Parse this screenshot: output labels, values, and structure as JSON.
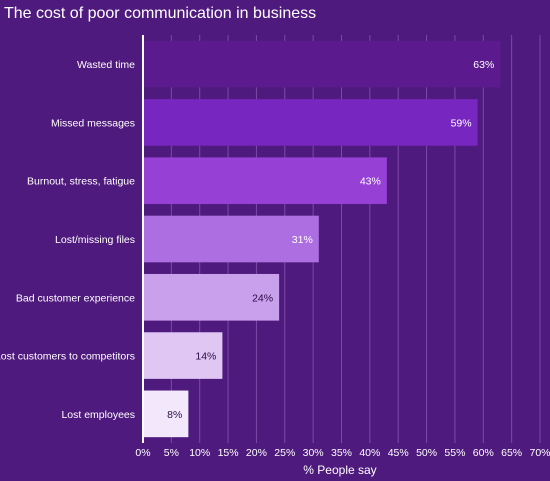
{
  "chart_data": {
    "type": "bar",
    "orientation": "horizontal",
    "title": "The cost of poor communication in business",
    "xlabel": "% People say",
    "ylabel": "",
    "xlim": [
      0,
      70
    ],
    "x_ticks": [
      "0%",
      "5%",
      "10%",
      "15%",
      "20%",
      "25%",
      "30%",
      "35%",
      "40%",
      "45%",
      "50%",
      "55%",
      "60%",
      "65%",
      "70%"
    ],
    "grid": true,
    "categories": [
      "Wasted time",
      "Missed messages",
      "Burnout, stress, fatigue",
      "Lost/missing files",
      "Bad customer experience",
      "Lost customers to competitors",
      "Lost employees"
    ],
    "values": [
      63,
      59,
      43,
      31,
      24,
      14,
      8
    ],
    "value_labels": [
      "63%",
      "59%",
      "43%",
      "31%",
      "24%",
      "14%",
      "8%"
    ],
    "bar_colors": [
      "#5b1b8e",
      "#7726bf",
      "#9640d6",
      "#ad6ee2",
      "#c9a0ec",
      "#dfc6f3",
      "#f3e8fb"
    ],
    "label_colors": [
      "#ffffff",
      "#ffffff",
      "#ffffff",
      "#ffffff",
      "#2a0a45",
      "#2a0a45",
      "#2a0a45"
    ]
  }
}
